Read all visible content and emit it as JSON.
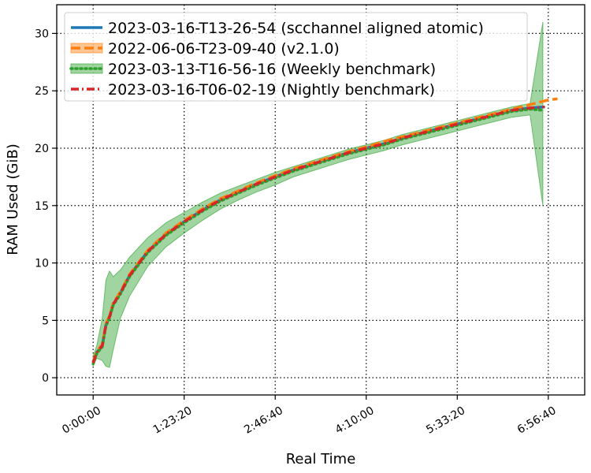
{
  "chart_data": {
    "type": "line",
    "title": "",
    "xlabel": "Real Time",
    "ylabel": "RAM Used (GiB)",
    "x_unit": "seconds",
    "xlim": [
      -2000,
      27000
    ],
    "ylim": [
      -1.5,
      32.5
    ],
    "x_ticks": [
      {
        "value": 0,
        "label": "0:00:00"
      },
      {
        "value": 5000,
        "label": "1:23:20"
      },
      {
        "value": 10000,
        "label": "2:46:40"
      },
      {
        "value": 15000,
        "label": "4:10:00"
      },
      {
        "value": 20000,
        "label": "5:33:20"
      },
      {
        "value": 25000,
        "label": "6:56:40"
      }
    ],
    "y_ticks": [
      0,
      5,
      10,
      15,
      20,
      25,
      30
    ],
    "grid": true,
    "legend_position": "top-left",
    "series": [
      {
        "name": "2023-03-16-T13-26-54 (scchannel aligned atomic)",
        "color": "#1f77b4",
        "style": "solid",
        "x": [
          0,
          200,
          500,
          700,
          900,
          1100,
          1500,
          2000,
          3000,
          4000,
          5000,
          6000,
          7000,
          8000,
          9000,
          10000,
          11000,
          12000,
          13000,
          14000,
          15000,
          16000,
          17000,
          18000,
          19000,
          20000,
          21000,
          22000,
          23000,
          24000,
          24800
        ],
        "y": [
          1.3,
          2.2,
          2.8,
          4.6,
          5.3,
          6.4,
          7.4,
          8.9,
          11.0,
          12.5,
          13.6,
          14.6,
          15.5,
          16.2,
          16.9,
          17.5,
          18.1,
          18.6,
          19.1,
          19.6,
          20.0,
          20.4,
          20.9,
          21.3,
          21.7,
          22.1,
          22.5,
          22.9,
          23.3,
          23.5,
          23.6
        ]
      },
      {
        "name": "2022-06-06-T23-09-40 (v2.1.0)",
        "color": "#ff7f0e",
        "style": "dashed",
        "x": [
          0,
          200,
          500,
          700,
          900,
          1100,
          1500,
          2000,
          3000,
          4000,
          5000,
          6000,
          7000,
          8000,
          9000,
          10000,
          11000,
          12000,
          13000,
          14000,
          15000,
          16000,
          17000,
          18000,
          19000,
          20000,
          21000,
          22000,
          23000,
          24000,
          25000,
          25500
        ],
        "y": [
          1.4,
          2.3,
          2.9,
          4.7,
          5.4,
          6.5,
          7.5,
          9.0,
          11.1,
          12.6,
          13.7,
          14.7,
          15.6,
          16.3,
          17.0,
          17.6,
          18.2,
          18.7,
          19.2,
          19.7,
          20.1,
          20.6,
          21.0,
          21.4,
          21.8,
          22.2,
          22.6,
          23.0,
          23.4,
          23.8,
          24.2,
          24.3
        ]
      },
      {
        "name": "2023-03-13-T16-56-16 (Weekly benchmark)",
        "color": "#2ca02c",
        "style": "dotted",
        "x": [
          0,
          200,
          500,
          700,
          900,
          1100,
          1500,
          2000,
          3000,
          4000,
          5000,
          6000,
          7000,
          8000,
          9000,
          10000,
          11000,
          12000,
          13000,
          14000,
          15000,
          16000,
          17000,
          18000,
          19000,
          20000,
          21000,
          22000,
          23000,
          24000,
          24700
        ],
        "y": [
          1.2,
          2.1,
          2.7,
          4.5,
          5.2,
          6.3,
          7.3,
          8.8,
          10.9,
          12.4,
          13.5,
          14.5,
          15.4,
          16.1,
          16.8,
          17.4,
          18.0,
          18.5,
          19.0,
          19.5,
          19.9,
          20.3,
          20.8,
          21.2,
          21.6,
          22.0,
          22.4,
          22.8,
          23.2,
          23.4,
          23.3
        ],
        "band_upper": [
          1.9,
          2.8,
          5.2,
          8.5,
          9.3,
          8.8,
          9.4,
          10.5,
          12.2,
          13.5,
          14.4,
          15.3,
          16.1,
          16.7,
          17.3,
          17.9,
          18.4,
          18.9,
          19.4,
          19.9,
          20.3,
          20.7,
          21.2,
          21.6,
          22.0,
          22.4,
          22.8,
          23.2,
          23.6,
          23.9,
          31.0
        ],
        "band_lower": [
          1.0,
          1.7,
          1.5,
          1.0,
          0.9,
          2.4,
          5.2,
          7.1,
          9.7,
          11.4,
          12.6,
          13.7,
          14.7,
          15.5,
          16.2,
          16.8,
          17.5,
          18.0,
          18.5,
          19.0,
          19.4,
          19.8,
          20.3,
          20.7,
          21.1,
          21.5,
          21.9,
          22.3,
          22.7,
          22.9,
          15.0
        ]
      },
      {
        "name": "2023-03-16-T06-02-19 (Nightly benchmark)",
        "color": "#d62728",
        "style": "dashdot",
        "x": [
          0,
          200,
          500,
          700,
          900,
          1100,
          1500,
          2000,
          3000,
          4000,
          5000,
          6000,
          7000,
          8000,
          9000,
          10000,
          11000,
          12000,
          13000,
          14000,
          15000,
          16000,
          17000,
          18000,
          19000,
          20000,
          21000,
          22000,
          23000,
          24000,
          24800
        ],
        "y": [
          1.3,
          2.2,
          2.8,
          4.6,
          5.3,
          6.4,
          7.4,
          8.9,
          11.0,
          12.5,
          13.6,
          14.6,
          15.5,
          16.2,
          16.9,
          17.5,
          18.1,
          18.6,
          19.1,
          19.6,
          20.0,
          20.4,
          20.9,
          21.3,
          21.7,
          22.1,
          22.5,
          22.9,
          23.3,
          23.5,
          23.6
        ]
      }
    ]
  }
}
